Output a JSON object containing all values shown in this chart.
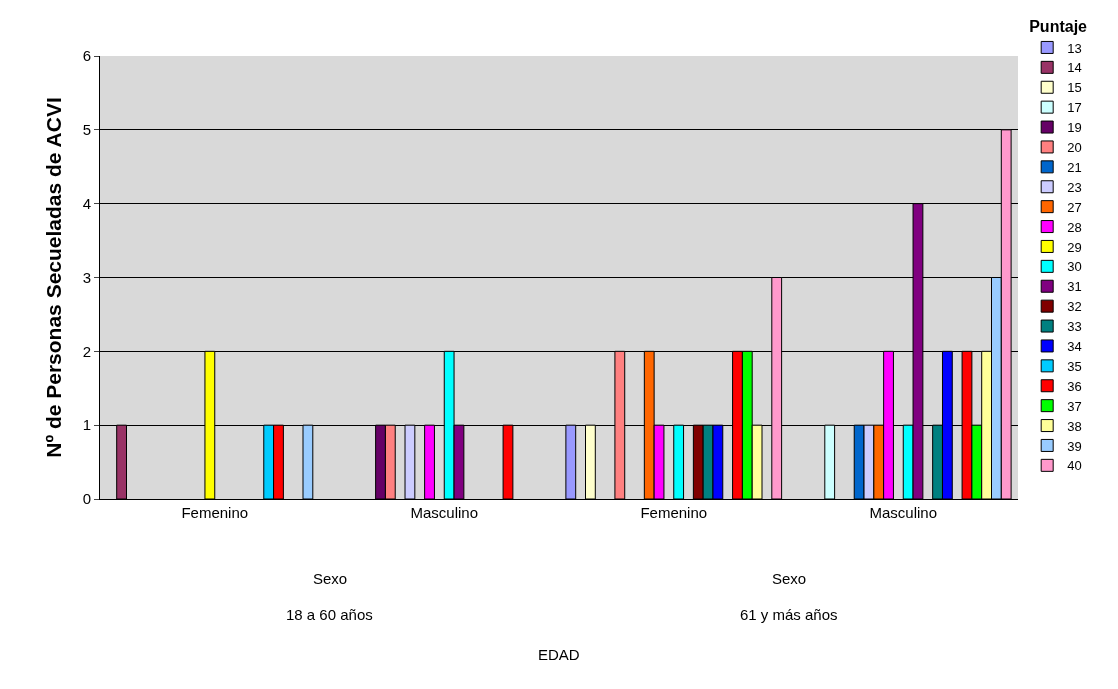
{
  "chart_data": {
    "type": "bar",
    "ylabel": "Nº de Personas Secueladas de ACVI",
    "legend_title": "Puntaje",
    "categories": [
      "Femenino",
      "Masculino",
      "Femenino",
      "Masculino"
    ],
    "annotations": [
      "Sexo",
      "Sexo",
      "18 a 60 años",
      "61 y más años",
      "EDAD"
    ],
    "ylim": [
      0,
      6
    ],
    "yticks": [
      0,
      1,
      2,
      3,
      4,
      5,
      6
    ],
    "grid": "y",
    "legend": "right",
    "series": [
      {
        "name": "13",
        "color": "#9999ff",
        "values": [
          null,
          null,
          1,
          null
        ]
      },
      {
        "name": "14",
        "color": "#993366",
        "values": [
          1,
          null,
          null,
          null
        ]
      },
      {
        "name": "15",
        "color": "#ffffcc",
        "values": [
          null,
          null,
          1,
          null
        ]
      },
      {
        "name": "17",
        "color": "#ccffff",
        "values": [
          null,
          null,
          null,
          1
        ]
      },
      {
        "name": "19",
        "color": "#660066",
        "values": [
          null,
          1,
          null,
          null
        ]
      },
      {
        "name": "20",
        "color": "#ff8080",
        "values": [
          null,
          1,
          2,
          null
        ]
      },
      {
        "name": "21",
        "color": "#0066cc",
        "values": [
          null,
          null,
          null,
          1
        ]
      },
      {
        "name": "23",
        "color": "#ccccff",
        "values": [
          null,
          1,
          null,
          1
        ]
      },
      {
        "name": "27",
        "color": "#ff6600",
        "values": [
          null,
          null,
          2,
          1
        ]
      },
      {
        "name": "28",
        "color": "#ff00ff",
        "values": [
          null,
          1,
          1,
          2
        ]
      },
      {
        "name": "29",
        "color": "#ffff00",
        "values": [
          2,
          null,
          null,
          null
        ]
      },
      {
        "name": "30",
        "color": "#00ffff",
        "values": [
          null,
          2,
          1,
          1
        ]
      },
      {
        "name": "31",
        "color": "#800080",
        "values": [
          null,
          1,
          null,
          4
        ]
      },
      {
        "name": "32",
        "color": "#800000",
        "values": [
          null,
          null,
          1,
          null
        ]
      },
      {
        "name": "33",
        "color": "#008080",
        "values": [
          null,
          null,
          1,
          1
        ]
      },
      {
        "name": "34",
        "color": "#0000ff",
        "values": [
          null,
          null,
          1,
          2
        ]
      },
      {
        "name": "35",
        "color": "#00ccff",
        "values": [
          1,
          null,
          null,
          null
        ]
      },
      {
        "name": "36",
        "color": "#ff0000",
        "values": [
          1,
          1,
          2,
          2
        ]
      },
      {
        "name": "37",
        "color": "#00ff00",
        "values": [
          null,
          null,
          2,
          1
        ]
      },
      {
        "name": "38",
        "color": "#ffff99",
        "values": [
          null,
          null,
          1,
          2
        ]
      },
      {
        "name": "39",
        "color": "#99ccff",
        "values": [
          1,
          null,
          null,
          3
        ]
      },
      {
        "name": "40",
        "color": "#ff99cc",
        "values": [
          null,
          null,
          3,
          5
        ]
      }
    ]
  }
}
